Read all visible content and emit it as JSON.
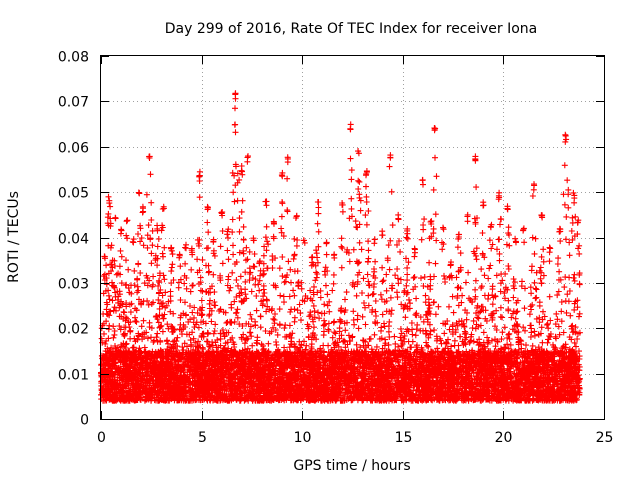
{
  "chart_data": {
    "type": "scatter",
    "title": "Day 299 of 2016, Rate Of TEC Index for receiver Iona",
    "xlabel": "GPS time / hours",
    "ylabel": "ROTI / TECUs",
    "xlim": [
      0,
      25
    ],
    "ylim": [
      0,
      0.08
    ],
    "xticks": [
      0,
      5,
      10,
      15,
      20,
      25
    ],
    "xtick_labels": [
      "0",
      "5",
      "10",
      "15",
      "20",
      "25"
    ],
    "yticks": [
      0,
      0.01,
      0.02,
      0.03,
      0.04,
      0.05,
      0.06,
      0.07,
      0.08
    ],
    "ytick_labels": [
      "0",
      "0.01",
      "0.02",
      "0.03",
      "0.04",
      "0.05",
      "0.06",
      "0.07",
      "0.08"
    ],
    "grid": true,
    "marker": "+",
    "series": [
      {
        "name": "ROTI",
        "color": "#ff0000",
        "data_range_x": [
          0,
          23.8
        ],
        "baseline_band": [
          0.004,
          0.015
        ],
        "peaks": [
          [
            0.2,
            0.036
          ],
          [
            0.4,
            0.049
          ],
          [
            0.7,
            0.045
          ],
          [
            1.0,
            0.042
          ],
          [
            1.3,
            0.045
          ],
          [
            1.6,
            0.04
          ],
          [
            1.9,
            0.05
          ],
          [
            2.1,
            0.047
          ],
          [
            2.4,
            0.059
          ],
          [
            2.8,
            0.043
          ],
          [
            3.1,
            0.047
          ],
          [
            3.5,
            0.039
          ],
          [
            3.9,
            0.037
          ],
          [
            4.2,
            0.039
          ],
          [
            4.5,
            0.038
          ],
          [
            4.9,
            0.055
          ],
          [
            5.3,
            0.047
          ],
          [
            5.6,
            0.04
          ],
          [
            6.0,
            0.046
          ],
          [
            6.3,
            0.042
          ],
          [
            6.7,
            0.072
          ],
          [
            7.0,
            0.056
          ],
          [
            7.3,
            0.058
          ],
          [
            7.6,
            0.04
          ],
          [
            7.9,
            0.035
          ],
          [
            8.2,
            0.048
          ],
          [
            8.6,
            0.044
          ],
          [
            9.0,
            0.055
          ],
          [
            9.3,
            0.058
          ],
          [
            9.7,
            0.045
          ],
          [
            10.1,
            0.04
          ],
          [
            10.5,
            0.036
          ],
          [
            10.8,
            0.048
          ],
          [
            11.2,
            0.04
          ],
          [
            11.6,
            0.037
          ],
          [
            12.0,
            0.048
          ],
          [
            12.4,
            0.065
          ],
          [
            12.8,
            0.06
          ],
          [
            13.2,
            0.055
          ],
          [
            13.6,
            0.04
          ],
          [
            14.0,
            0.042
          ],
          [
            14.4,
            0.059
          ],
          [
            14.8,
            0.045
          ],
          [
            15.2,
            0.042
          ],
          [
            15.6,
            0.038
          ],
          [
            16.0,
            0.053
          ],
          [
            16.4,
            0.044
          ],
          [
            16.6,
            0.065
          ],
          [
            17.0,
            0.043
          ],
          [
            17.4,
            0.035
          ],
          [
            17.8,
            0.041
          ],
          [
            18.2,
            0.045
          ],
          [
            18.6,
            0.058
          ],
          [
            19.0,
            0.048
          ],
          [
            19.4,
            0.043
          ],
          [
            19.8,
            0.05
          ],
          [
            20.2,
            0.047
          ],
          [
            20.6,
            0.04
          ],
          [
            21.0,
            0.043
          ],
          [
            21.5,
            0.052
          ],
          [
            21.9,
            0.045
          ],
          [
            22.3,
            0.038
          ],
          [
            22.8,
            0.042
          ],
          [
            23.1,
            0.063
          ],
          [
            23.5,
            0.05
          ],
          [
            23.7,
            0.044
          ]
        ],
        "point_count_approx": 9000
      }
    ]
  }
}
